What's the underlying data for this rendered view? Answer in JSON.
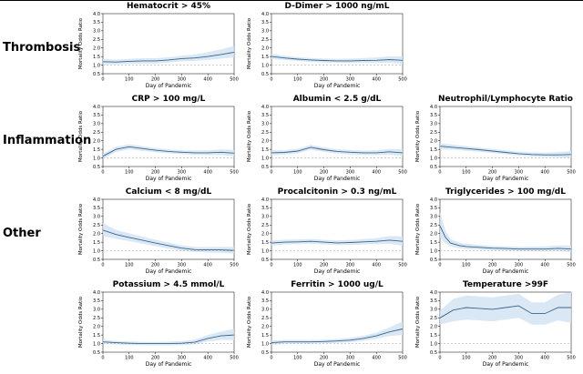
{
  "figure": {
    "groups": [
      "Thrombosis",
      "Inflammation",
      "Other",
      ""
    ]
  },
  "axes": {
    "ylabel": "Mortality Odds Ratio",
    "xlabel": "Day of Pandemic",
    "ylim": [
      0.5,
      4.0
    ],
    "xlim": [
      0,
      500
    ],
    "yticks": [
      0.5,
      1.0,
      1.5,
      2.0,
      2.5,
      3.0,
      3.5,
      4.0
    ],
    "xticks": [
      0,
      100,
      200,
      300,
      400,
      500
    ],
    "ref_line": 1.0,
    "line_color": "#39678c",
    "band_color": "#d3e3f3",
    "ref_color": "#b0b0b0"
  },
  "chart_data": [
    {
      "type": "line",
      "title": "Hematocrit > 45%",
      "group": "Thrombosis",
      "x": [
        0,
        50,
        100,
        150,
        200,
        250,
        300,
        350,
        400,
        450,
        500
      ],
      "y": [
        1.2,
        1.18,
        1.22,
        1.25,
        1.25,
        1.3,
        1.38,
        1.42,
        1.5,
        1.62,
        1.75
      ],
      "band_lower": [
        1.05,
        1.05,
        1.08,
        1.1,
        1.1,
        1.15,
        1.22,
        1.25,
        1.3,
        1.38,
        1.45
      ],
      "band_upper": [
        1.35,
        1.32,
        1.36,
        1.4,
        1.4,
        1.46,
        1.55,
        1.62,
        1.75,
        1.92,
        2.12
      ]
    },
    {
      "type": "line",
      "title": "D-Dimer > 1000 ng/mL",
      "group": "Thrombosis",
      "x": [
        0,
        50,
        100,
        150,
        200,
        250,
        300,
        350,
        400,
        450,
        500
      ],
      "y": [
        1.5,
        1.42,
        1.35,
        1.3,
        1.27,
        1.25,
        1.25,
        1.27,
        1.28,
        1.32,
        1.28
      ],
      "band_lower": [
        1.35,
        1.3,
        1.24,
        1.19,
        1.16,
        1.14,
        1.13,
        1.14,
        1.13,
        1.14,
        1.08
      ],
      "band_upper": [
        1.65,
        1.55,
        1.47,
        1.42,
        1.38,
        1.37,
        1.38,
        1.41,
        1.44,
        1.52,
        1.5
      ]
    },
    {
      "type": "line",
      "title": "CRP > 100 mg/L",
      "group": "Inflammation",
      "x": [
        0,
        50,
        100,
        150,
        200,
        250,
        300,
        350,
        400,
        450,
        500
      ],
      "y": [
        1.1,
        1.5,
        1.65,
        1.55,
        1.45,
        1.38,
        1.33,
        1.3,
        1.3,
        1.33,
        1.28
      ],
      "band_lower": [
        0.95,
        1.35,
        1.5,
        1.42,
        1.33,
        1.27,
        1.22,
        1.18,
        1.17,
        1.18,
        1.1
      ],
      "band_upper": [
        1.25,
        1.65,
        1.8,
        1.69,
        1.58,
        1.5,
        1.45,
        1.43,
        1.44,
        1.49,
        1.47
      ]
    },
    {
      "type": "line",
      "title": "Albumin < 2.5 g/dL",
      "group": "Inflammation",
      "x": [
        0,
        50,
        100,
        150,
        200,
        250,
        300,
        350,
        400,
        450,
        500
      ],
      "y": [
        1.3,
        1.32,
        1.4,
        1.62,
        1.48,
        1.38,
        1.33,
        1.3,
        1.3,
        1.36,
        1.3
      ],
      "band_lower": [
        1.15,
        1.2,
        1.27,
        1.48,
        1.35,
        1.26,
        1.21,
        1.18,
        1.17,
        1.2,
        1.12
      ],
      "band_upper": [
        1.45,
        1.45,
        1.54,
        1.77,
        1.62,
        1.51,
        1.46,
        1.43,
        1.44,
        1.53,
        1.49
      ]
    },
    {
      "type": "line",
      "title": "Neutrophil/Lymphocyte Ratio",
      "group": "Inflammation",
      "x": [
        0,
        50,
        100,
        150,
        200,
        250,
        300,
        350,
        400,
        450,
        500
      ],
      "y": [
        1.68,
        1.62,
        1.55,
        1.48,
        1.4,
        1.32,
        1.25,
        1.2,
        1.18,
        1.18,
        1.2
      ],
      "band_lower": [
        1.5,
        1.48,
        1.42,
        1.36,
        1.29,
        1.21,
        1.14,
        1.09,
        1.06,
        1.04,
        1.02
      ],
      "band_upper": [
        1.86,
        1.77,
        1.69,
        1.61,
        1.52,
        1.44,
        1.37,
        1.32,
        1.31,
        1.33,
        1.4
      ]
    },
    {
      "type": "line",
      "title": "Calcium < 8 mg/dL",
      "group": "Other",
      "x": [
        0,
        50,
        100,
        150,
        200,
        250,
        300,
        350,
        400,
        450,
        500
      ],
      "y": [
        2.2,
        1.95,
        1.78,
        1.62,
        1.45,
        1.3,
        1.15,
        1.07,
        1.05,
        1.05,
        1.02
      ],
      "band_lower": [
        1.85,
        1.7,
        1.56,
        1.42,
        1.27,
        1.13,
        1.0,
        0.93,
        0.9,
        0.88,
        0.84
      ],
      "band_upper": [
        2.6,
        2.22,
        2.01,
        1.83,
        1.64,
        1.48,
        1.31,
        1.22,
        1.21,
        1.23,
        1.22
      ]
    },
    {
      "type": "line",
      "title": "Procalcitonin > 0.3 ng/mL",
      "group": "Other",
      "x": [
        0,
        50,
        100,
        150,
        200,
        250,
        300,
        350,
        400,
        450,
        500
      ],
      "y": [
        1.45,
        1.5,
        1.52,
        1.55,
        1.5,
        1.46,
        1.48,
        1.52,
        1.55,
        1.62,
        1.55
      ],
      "band_lower": [
        1.3,
        1.37,
        1.39,
        1.42,
        1.37,
        1.33,
        1.34,
        1.37,
        1.38,
        1.4,
        1.3
      ],
      "band_upper": [
        1.6,
        1.64,
        1.66,
        1.69,
        1.64,
        1.6,
        1.63,
        1.68,
        1.73,
        1.86,
        1.83
      ]
    },
    {
      "type": "line",
      "title": "Triglycerides > 100 mg/dL",
      "group": "Other",
      "x": [
        0,
        20,
        40,
        75,
        100,
        150,
        200,
        250,
        300,
        350,
        400,
        450,
        500
      ],
      "y": [
        2.45,
        1.8,
        1.45,
        1.3,
        1.25,
        1.2,
        1.15,
        1.13,
        1.1,
        1.1,
        1.1,
        1.14,
        1.1
      ],
      "band_lower": [
        1.75,
        1.45,
        1.25,
        1.14,
        1.1,
        1.07,
        1.03,
        1.01,
        0.98,
        0.97,
        0.96,
        0.98,
        0.92
      ],
      "band_upper": [
        3.25,
        2.2,
        1.68,
        1.47,
        1.41,
        1.34,
        1.28,
        1.26,
        1.23,
        1.24,
        1.25,
        1.31,
        1.3
      ]
    },
    {
      "type": "line",
      "title": "Potassium > 4.5 mmol/L",
      "group": "",
      "x": [
        0,
        50,
        100,
        150,
        200,
        250,
        300,
        350,
        400,
        450,
        500
      ],
      "y": [
        1.1,
        1.05,
        1.02,
        1.0,
        1.0,
        1.0,
        1.02,
        1.08,
        1.3,
        1.45,
        1.5
      ],
      "band_lower": [
        0.98,
        0.95,
        0.92,
        0.9,
        0.9,
        0.9,
        0.91,
        0.95,
        1.12,
        1.22,
        1.2
      ],
      "band_upper": [
        1.22,
        1.16,
        1.12,
        1.1,
        1.1,
        1.11,
        1.14,
        1.23,
        1.5,
        1.7,
        1.85
      ]
    },
    {
      "type": "line",
      "title": "Ferritin > 1000 ug/L",
      "group": "",
      "x": [
        0,
        50,
        100,
        150,
        200,
        250,
        300,
        350,
        400,
        450,
        500
      ],
      "y": [
        1.05,
        1.1,
        1.1,
        1.1,
        1.12,
        1.15,
        1.2,
        1.3,
        1.45,
        1.68,
        1.85
      ],
      "band_lower": [
        0.92,
        1.0,
        1.0,
        1.0,
        1.02,
        1.04,
        1.08,
        1.16,
        1.28,
        1.44,
        1.5
      ],
      "band_upper": [
        1.18,
        1.21,
        1.21,
        1.21,
        1.23,
        1.27,
        1.33,
        1.45,
        1.64,
        1.95,
        2.3
      ]
    },
    {
      "type": "line",
      "title": "Temperature >99F",
      "group": "",
      "x": [
        0,
        50,
        100,
        150,
        200,
        250,
        300,
        350,
        400,
        450,
        500
      ],
      "y": [
        2.5,
        2.95,
        3.1,
        3.05,
        3.0,
        3.1,
        3.2,
        2.75,
        2.75,
        3.1,
        3.1
      ],
      "band_lower": [
        2.1,
        2.3,
        2.4,
        2.35,
        2.3,
        2.4,
        2.5,
        2.1,
        2.1,
        2.35,
        2.2
      ],
      "band_upper": [
        2.9,
        3.6,
        3.8,
        3.75,
        3.7,
        3.8,
        3.9,
        3.4,
        3.4,
        3.85,
        4.0
      ]
    }
  ]
}
